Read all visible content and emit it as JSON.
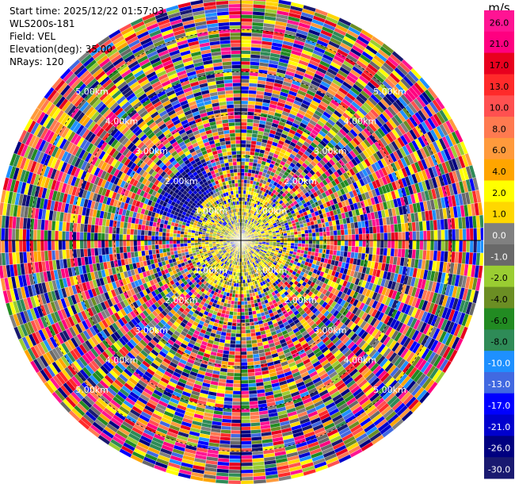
{
  "info": {
    "start_time": "Start time: 2025/12/22 01:57:03",
    "station": "WLS200s-181",
    "field": "Field: VEL",
    "elevation": "Elevation(deg): 35.00",
    "nrays": "NRays: 120"
  },
  "chart_data": {
    "type": "heatmap",
    "projection": "polar-ppi",
    "field": "VEL",
    "nrays": 120,
    "range_rings_km": [
      1,
      2,
      3,
      4,
      5
    ],
    "ring_labels": [
      "1.00km",
      "2.00km",
      "3.00km",
      "4.00km",
      "5.00km"
    ],
    "colorbar": {
      "unit": "m/s",
      "vmin": -30,
      "vmax": 30,
      "ticks": [
        "26.0",
        "21.0",
        "17.0",
        "13.0",
        "10.0",
        "8.0",
        "6.0",
        "4.0",
        "2.0",
        "1.0",
        "0.0",
        "-1.0",
        "-2.0",
        "-4.0",
        "-6.0",
        "-8.0",
        "-10.0",
        "-13.0",
        "-17.0",
        "-21.0",
        "-26.0",
        "-30.0"
      ],
      "colors": [
        "#ff1493",
        "#ff0080",
        "#e8001e",
        "#ff2a2a",
        "#ff5050",
        "#ff7a50",
        "#ff9a3c",
        "#ffa500",
        "#ffff00",
        "#ffd700",
        "#808080",
        "#696969",
        "#9acd32",
        "#6b8e23",
        "#228b22",
        "#2e8b57",
        "#1e90ff",
        "#4169e1",
        "#0000ff",
        "#0000cd",
        "#000080",
        "#191970"
      ]
    }
  }
}
